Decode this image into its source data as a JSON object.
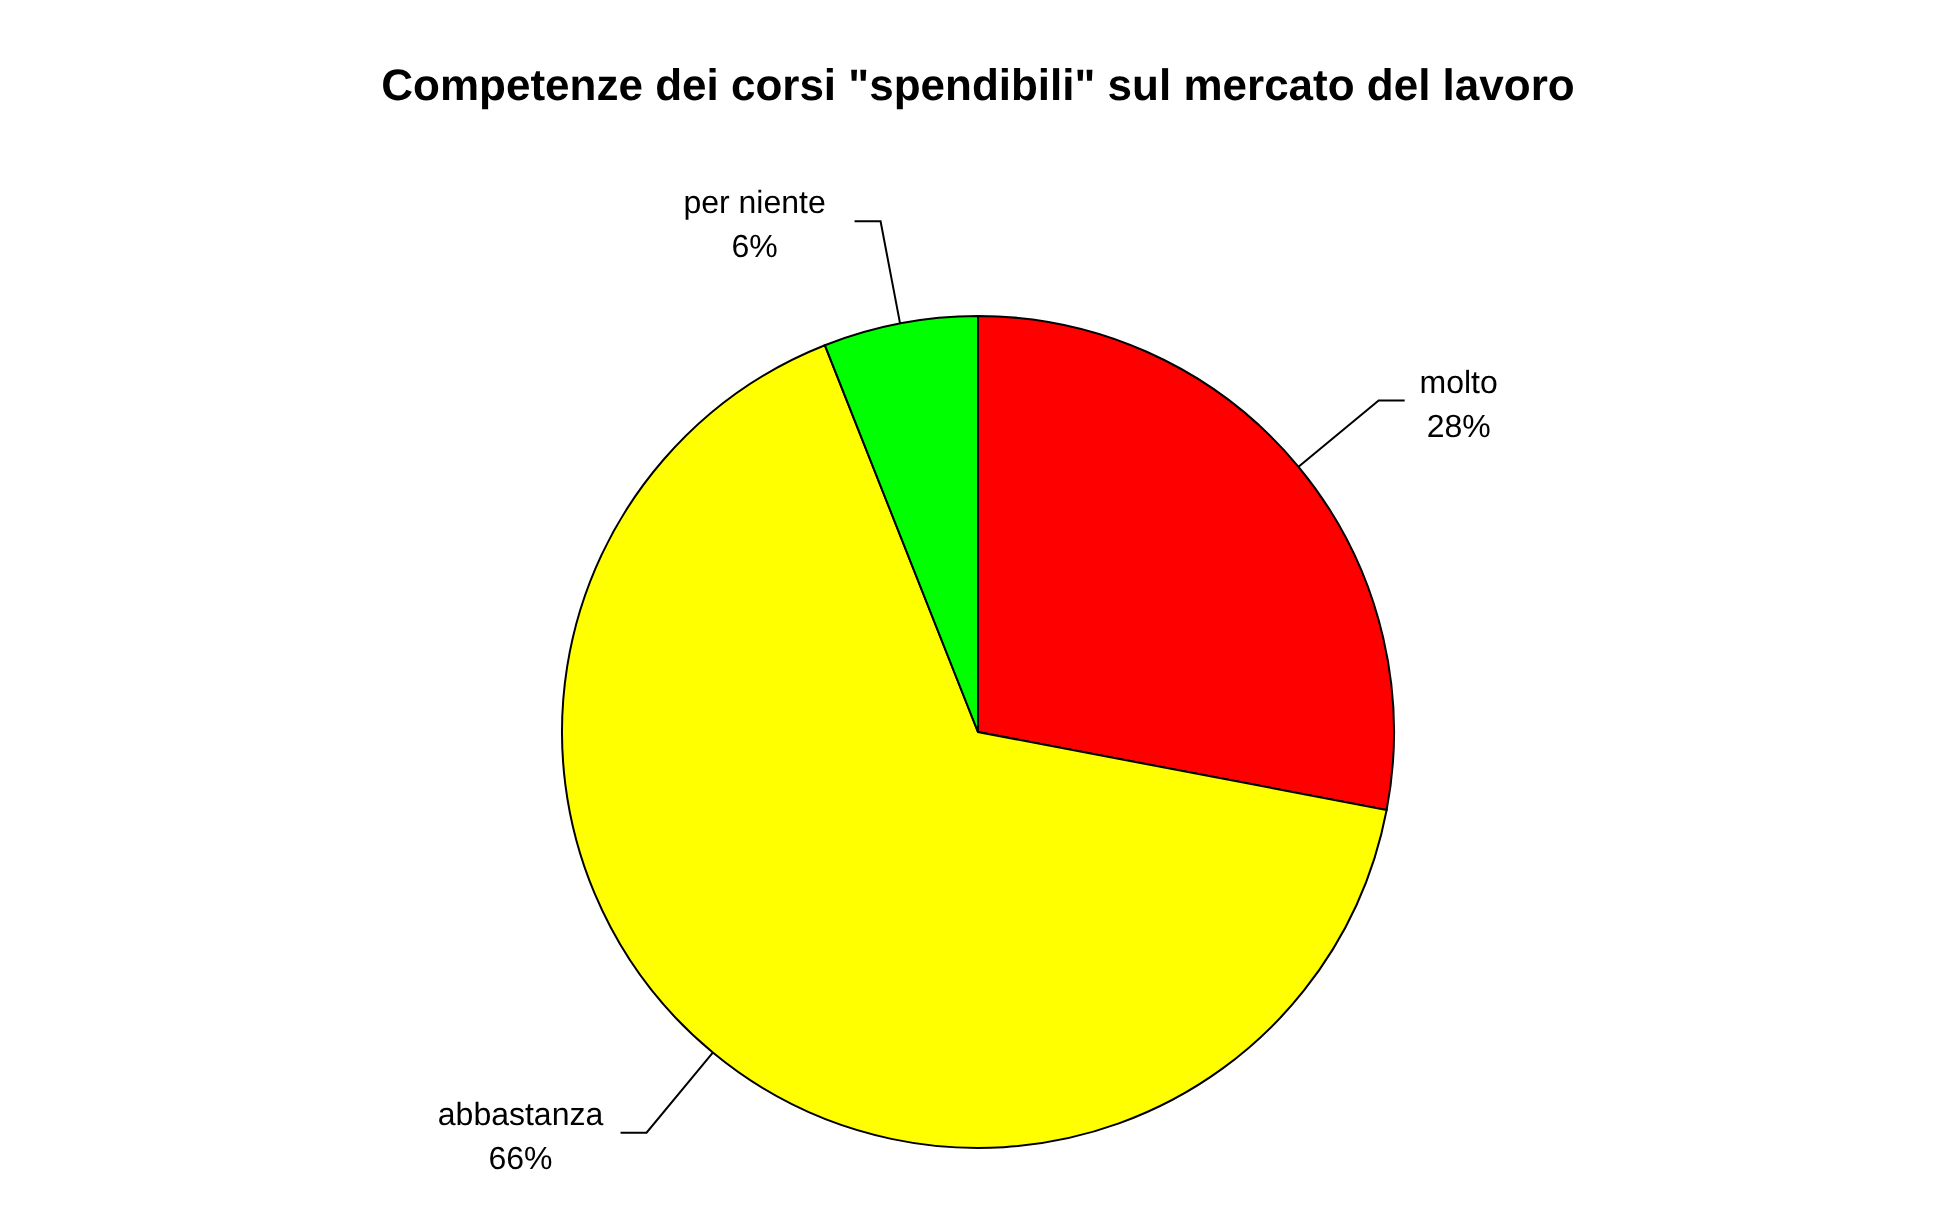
{
  "chart_data": {
    "type": "pie",
    "title": "Competenze dei corsi \"spendibili\" sul mercato del lavoro",
    "categories": [
      "molto",
      "abbastanza",
      "per niente"
    ],
    "values": [
      28,
      66,
      6
    ],
    "colors": [
      "#ff0000",
      "#ffff00",
      "#00ff00"
    ],
    "value_labels": [
      "28%",
      "66%",
      "6%"
    ]
  }
}
